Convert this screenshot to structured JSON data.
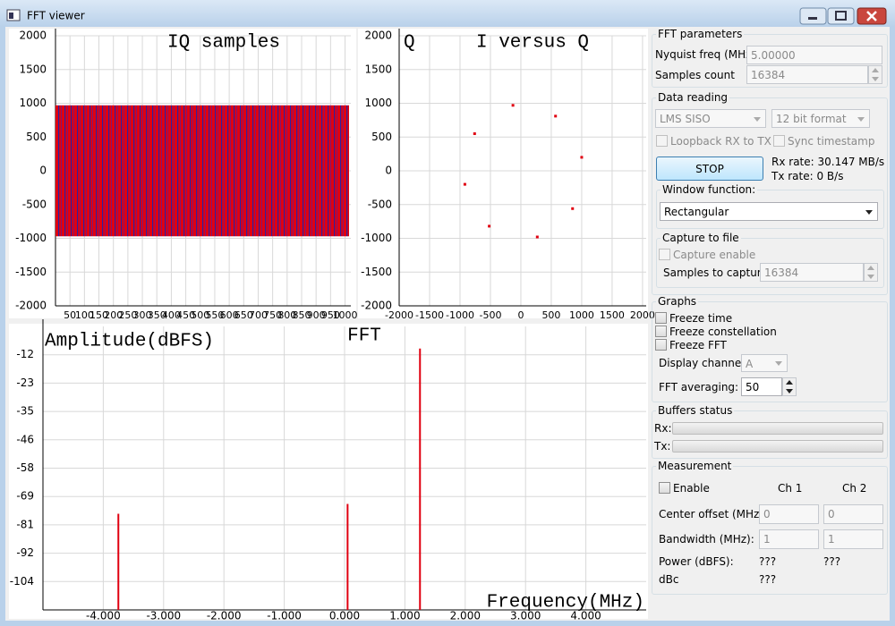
{
  "window": {
    "title": "FFT viewer"
  },
  "plots": {
    "iq": {
      "title": "IQ samples",
      "xlim": [
        0,
        1020
      ],
      "ylim": [
        -2000,
        2000
      ],
      "xticks": [
        50,
        100,
        150,
        200,
        250,
        300,
        350,
        400,
        450,
        500,
        550,
        600,
        650,
        700,
        750,
        800,
        850,
        900,
        950,
        1000
      ],
      "yticks": [
        2000,
        1500,
        1000,
        500,
        0,
        -500,
        -1000,
        -1500,
        -2000
      ],
      "envelope": [
        -970,
        970
      ]
    },
    "constellation": {
      "ylabel": "Q",
      "title": "I versus Q",
      "xlim": [
        -2000,
        2060
      ],
      "ylim": [
        -2000,
        2000
      ],
      "xticks": [
        -2000,
        -1500,
        -1000,
        -500,
        0,
        500,
        1000,
        1500,
        2000
      ],
      "yticks": [
        2000,
        1500,
        1000,
        500,
        0,
        -500,
        -1000,
        -1500,
        -2000
      ],
      "points": {
        "i": [
          1000,
          570,
          -130,
          -760,
          -920,
          -520,
          270,
          850
        ],
        "q": [
          200,
          810,
          970,
          550,
          -200,
          -820,
          -980,
          -560
        ]
      }
    },
    "fft": {
      "ylabel": "Amplitude(dBFS)",
      "title": "FFT",
      "xlabel": "Frequency(MHz)",
      "xlim": [
        -5,
        5
      ],
      "ylim": [
        -115,
        0
      ],
      "xticks": [
        {
          "value": -4,
          "label": "-4.000"
        },
        {
          "value": -3,
          "label": "-3.000"
        },
        {
          "value": -2,
          "label": "-2.000"
        },
        {
          "value": -1,
          "label": "-1.000"
        },
        {
          "value": 0,
          "label": "0.000"
        },
        {
          "value": 1,
          "label": "1.000"
        },
        {
          "value": 2,
          "label": "2.000"
        },
        {
          "value": 3,
          "label": "3.000"
        },
        {
          "value": 4,
          "label": "4.000"
        }
      ],
      "yticks": [
        {
          "value": -11.5,
          "label": "-12"
        },
        -23,
        {
          "value": -34.5,
          "label": "-35"
        },
        -46,
        {
          "value": -57.5,
          "label": "-58"
        },
        -69,
        {
          "value": -80.5,
          "label": "-81"
        },
        -92,
        {
          "value": -103.5,
          "label": "-104"
        }
      ],
      "peaks": {
        "x": [
          -3.75,
          0.05,
          1.25
        ],
        "values": [
          -76,
          -72,
          -9
        ]
      }
    }
  },
  "panel": {
    "fft_parameters": {
      "title": "FFT parameters",
      "nyquist_label": "Nyquist freq (MHz):",
      "nyquist_value": "5.00000",
      "samples_label": "Samples count",
      "samples_value": "16384"
    },
    "data_reading": {
      "title": "Data reading",
      "device": "LMS SISO",
      "format": "12 bit format",
      "loopback": "Loopback RX to TX",
      "sync": "Sync timestamp",
      "button": "STOP",
      "rx_rate": "Rx rate:  30.147 MB/s",
      "tx_rate": "Tx rate:  0 B/s",
      "window_title": "Window function:",
      "window_value": "Rectangular",
      "capture_title": "Capture to file",
      "capture_enable": "Capture enable",
      "capture_label": "Samples to capture:",
      "capture_value": "16384"
    },
    "graphs": {
      "title": "Graphs",
      "freeze_time": "Freeze time",
      "freeze_constellation": "Freeze constellation",
      "freeze_fft": "Freeze FFT",
      "channel_label": "Display channel:",
      "channel_value": "A",
      "averaging_label": "FFT averaging:",
      "averaging_value": "50"
    },
    "buffers": {
      "title": "Buffers status",
      "rx": "Rx:",
      "tx": "Tx:"
    },
    "measurement": {
      "title": "Measurement",
      "enable": "Enable",
      "ch1": "Ch 1",
      "ch2": "Ch 2",
      "rows": [
        [
          "Center offset (MHz):",
          "0",
          "0"
        ],
        [
          "Bandwidth (MHz):",
          "1",
          "1"
        ],
        [
          "Power (dBFS):",
          "???",
          "???"
        ],
        [
          "dBc",
          "???"
        ]
      ]
    }
  }
}
